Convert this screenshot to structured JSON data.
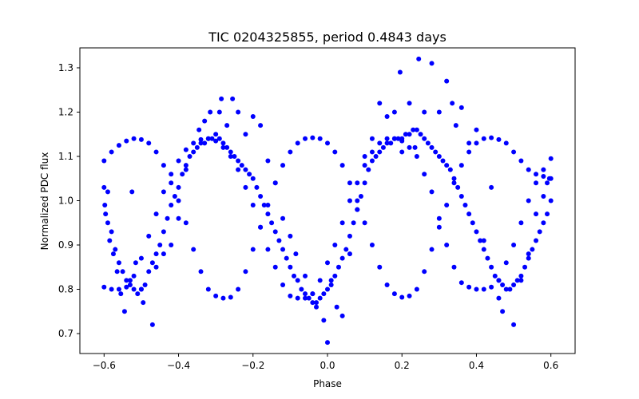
{
  "chart_data": {
    "type": "scatter",
    "title": "TIC 0204325855, period 0.4843 days",
    "xlabel": "Phase",
    "ylabel": "Normalized PDC flux",
    "xlim": [
      -0.665,
      0.665
    ],
    "ylim": [
      0.655,
      1.345
    ],
    "grid": false,
    "legend": "none",
    "marker_color": "#0000ff",
    "x_ticks": [
      -0.6,
      -0.4,
      -0.2,
      0.0,
      0.2,
      0.4,
      0.6
    ],
    "x_tick_labels": [
      "−0.6",
      "−0.4",
      "−0.2",
      "0.0",
      "0.2",
      "0.4",
      "0.6"
    ],
    "y_ticks": [
      0.7,
      0.8,
      0.9,
      1.0,
      1.1,
      1.2,
      1.3
    ],
    "y_tick_labels": [
      "0.7",
      "0.8",
      "0.9",
      "1.0",
      "1.1",
      "1.2",
      "1.3"
    ],
    "series": [
      {
        "x": [
          -0.6,
          -0.58,
          -0.56,
          -0.54,
          -0.52,
          -0.5,
          -0.48,
          -0.46,
          -0.44,
          -0.42,
          -0.4,
          -0.38,
          -0.36,
          -0.34,
          -0.32,
          -0.3,
          -0.28,
          -0.26,
          -0.24,
          -0.22,
          -0.2,
          -0.18,
          -0.16,
          -0.14,
          -0.12,
          -0.1,
          -0.08,
          -0.06,
          -0.04,
          -0.02,
          0.0,
          0.02,
          0.04,
          0.06,
          0.08,
          0.1,
          0.12,
          0.14,
          0.16,
          0.18,
          0.2,
          0.22,
          0.24,
          0.26,
          0.28,
          0.3,
          0.32,
          0.34,
          0.36,
          0.38,
          0.4,
          0.42,
          0.44,
          0.46,
          0.48,
          0.5,
          0.52,
          0.54,
          0.56,
          0.58,
          0.6
        ],
        "y": [
          1.09,
          1.11,
          1.125,
          1.135,
          1.14,
          1.138,
          1.13,
          1.11,
          1.08,
          1.04,
          1.0,
          0.95,
          0.89,
          0.84,
          0.8,
          0.785,
          0.78,
          0.782,
          0.8,
          0.84,
          0.89,
          0.94,
          0.99,
          1.04,
          1.08,
          1.11,
          1.13,
          1.14,
          1.142,
          1.14,
          1.13,
          1.11,
          1.08,
          1.04,
          1.0,
          0.95,
          0.9,
          0.85,
          0.81,
          0.79,
          0.782,
          0.785,
          0.8,
          0.84,
          0.89,
          0.94,
          0.99,
          1.04,
          1.08,
          1.11,
          1.13,
          1.14,
          1.142,
          1.138,
          1.13,
          1.11,
          1.09,
          1.07,
          1.06,
          1.055,
          1.05
        ]
      },
      {
        "x": [
          -0.6,
          -0.58,
          -0.56,
          -0.54,
          -0.52,
          -0.5,
          -0.48,
          -0.46,
          -0.44,
          -0.42,
          -0.4,
          -0.38,
          -0.36,
          -0.34,
          -0.32,
          -0.3,
          -0.28,
          -0.26,
          -0.24,
          -0.22,
          -0.2,
          -0.18,
          -0.16,
          -0.14,
          -0.12,
          -0.1,
          -0.08,
          -0.06,
          -0.04,
          -0.02,
          0.0,
          0.02,
          0.04,
          0.06,
          0.08,
          0.1,
          0.12,
          0.14,
          0.16,
          0.18,
          0.2,
          0.22,
          0.24,
          0.26,
          0.28,
          0.3,
          0.32,
          0.34,
          0.36,
          0.38,
          0.4,
          0.42,
          0.44,
          0.46,
          0.48,
          0.5,
          0.52,
          0.54,
          0.56,
          0.58,
          0.6
        ],
        "y": [
          0.805,
          0.8,
          0.8,
          0.805,
          0.83,
          0.87,
          0.92,
          0.97,
          1.02,
          1.06,
          1.09,
          1.115,
          1.13,
          1.138,
          1.14,
          1.135,
          1.12,
          1.1,
          1.07,
          1.03,
          0.99,
          0.94,
          0.89,
          0.85,
          0.81,
          0.785,
          0.78,
          0.78,
          0.79,
          0.82,
          0.86,
          0.9,
          0.95,
          1.0,
          1.04,
          1.08,
          1.11,
          1.13,
          1.14,
          1.14,
          1.135,
          1.12,
          1.1,
          1.06,
          1.02,
          0.96,
          0.9,
          0.85,
          0.815,
          0.805,
          0.8,
          0.8,
          0.805,
          0.82,
          0.86,
          0.9,
          0.95,
          1.0,
          1.04,
          1.07,
          1.095
        ]
      },
      {
        "x": [
          -0.6,
          -0.59,
          -0.58,
          -0.57,
          -0.56,
          -0.55,
          -0.54,
          -0.53,
          -0.52,
          -0.51,
          -0.5,
          -0.49,
          -0.48,
          -0.47,
          -0.46,
          -0.45,
          -0.44,
          -0.43,
          -0.42,
          -0.41,
          -0.4,
          -0.39,
          -0.38,
          -0.37,
          -0.36,
          -0.35,
          -0.34,
          -0.33,
          -0.32,
          -0.31,
          -0.3,
          -0.29,
          -0.28,
          -0.27,
          -0.26,
          -0.25,
          -0.24,
          -0.23,
          -0.22,
          -0.21,
          -0.2,
          -0.19,
          -0.18,
          -0.17,
          -0.16,
          -0.15,
          -0.14,
          -0.13,
          -0.12,
          -0.11,
          -0.1,
          -0.09,
          -0.08,
          -0.07,
          -0.06,
          -0.05,
          -0.04,
          -0.03,
          -0.02,
          -0.01,
          0.0,
          0.01,
          0.02,
          0.03,
          0.04,
          0.05,
          0.06,
          0.07,
          0.08,
          0.09,
          0.1,
          0.11,
          0.12,
          0.13,
          0.14,
          0.15,
          0.16,
          0.17,
          0.18,
          0.19,
          0.2,
          0.21,
          0.22,
          0.23,
          0.24,
          0.25,
          0.26,
          0.27,
          0.28,
          0.29,
          0.3,
          0.31,
          0.32,
          0.33,
          0.34,
          0.35,
          0.36,
          0.37,
          0.38,
          0.39,
          0.4,
          0.41,
          0.42,
          0.43,
          0.44,
          0.45,
          0.46,
          0.47,
          0.48,
          0.49,
          0.5,
          0.51,
          0.52,
          0.53,
          0.54,
          0.55,
          0.56,
          0.57,
          0.58,
          0.59,
          0.6
        ],
        "y": [
          1.03,
          0.95,
          0.93,
          0.89,
          0.86,
          0.84,
          0.82,
          0.81,
          0.8,
          0.79,
          0.8,
          0.81,
          0.84,
          0.86,
          0.88,
          0.9,
          0.93,
          0.96,
          0.99,
          1.01,
          1.03,
          1.06,
          1.08,
          1.1,
          1.11,
          1.12,
          1.13,
          1.13,
          1.14,
          1.14,
          1.15,
          1.14,
          1.13,
          1.12,
          1.11,
          1.1,
          1.09,
          1.08,
          1.07,
          1.06,
          1.05,
          1.03,
          1.01,
          0.99,
          0.97,
          0.95,
          0.93,
          0.91,
          0.89,
          0.87,
          0.85,
          0.83,
          0.82,
          0.8,
          0.79,
          0.78,
          0.77,
          0.77,
          0.78,
          0.79,
          0.8,
          0.81,
          0.83,
          0.85,
          0.87,
          0.89,
          0.92,
          0.95,
          0.98,
          1.01,
          1.04,
          1.07,
          1.09,
          1.1,
          1.11,
          1.12,
          1.13,
          1.13,
          1.14,
          1.14,
          1.14,
          1.15,
          1.15,
          1.16,
          1.16,
          1.15,
          1.14,
          1.13,
          1.12,
          1.11,
          1.1,
          1.09,
          1.08,
          1.07,
          1.05,
          1.03,
          1.01,
          0.99,
          0.97,
          0.95,
          0.93,
          0.91,
          0.89,
          0.87,
          0.85,
          0.83,
          0.82,
          0.81,
          0.8,
          0.8,
          0.81,
          0.82,
          0.83,
          0.85,
          0.87,
          0.89,
          0.91,
          0.93,
          0.95,
          0.97,
          1.0
        ]
      },
      {
        "x": [
          -0.598,
          -0.596,
          -0.59,
          -0.585,
          -0.575,
          -0.565,
          -0.555,
          -0.545,
          -0.53,
          -0.525,
          -0.515,
          -0.5,
          -0.495,
          -0.47,
          -0.46,
          -0.44,
          -0.42,
          -0.4,
          -0.38,
          -0.345,
          -0.33,
          -0.315,
          -0.29,
          -0.285,
          -0.27,
          -0.255,
          -0.24,
          -0.22,
          -0.2,
          -0.18,
          -0.16,
          -0.14,
          -0.12,
          -0.1,
          -0.085,
          -0.06,
          -0.04,
          -0.03,
          -0.01,
          0.0,
          0.01,
          0.025,
          0.04,
          0.06,
          0.08,
          0.1,
          0.12,
          0.14,
          0.16,
          0.18,
          0.195,
          0.2,
          0.22,
          0.235,
          0.245,
          0.26,
          0.28,
          0.3,
          0.32,
          0.335,
          0.345,
          0.36,
          0.38,
          0.4,
          0.42,
          0.44,
          0.46,
          0.47,
          0.5,
          0.52,
          0.54,
          0.56,
          0.58,
          0.59,
          0.596
        ],
        "y": [
          0.99,
          0.97,
          1.02,
          0.91,
          0.88,
          0.84,
          0.79,
          0.75,
          0.82,
          1.02,
          0.86,
          0.8,
          0.77,
          0.72,
          0.85,
          0.88,
          0.9,
          0.96,
          1.07,
          1.16,
          1.18,
          1.2,
          1.2,
          1.23,
          1.17,
          1.23,
          1.2,
          1.15,
          1.19,
          1.17,
          1.09,
          1.04,
          0.96,
          0.92,
          0.88,
          0.83,
          0.79,
          0.76,
          0.73,
          0.68,
          0.82,
          0.76,
          0.74,
          0.88,
          0.98,
          1.1,
          1.14,
          1.22,
          1.19,
          1.2,
          1.29,
          1.11,
          1.22,
          1.12,
          1.32,
          1.2,
          1.31,
          1.2,
          1.27,
          1.22,
          1.17,
          1.21,
          1.13,
          1.16,
          0.91,
          1.03,
          0.78,
          0.75,
          0.72,
          0.82,
          0.88,
          0.97,
          1.01,
          1.04,
          1.05
        ]
      }
    ]
  }
}
